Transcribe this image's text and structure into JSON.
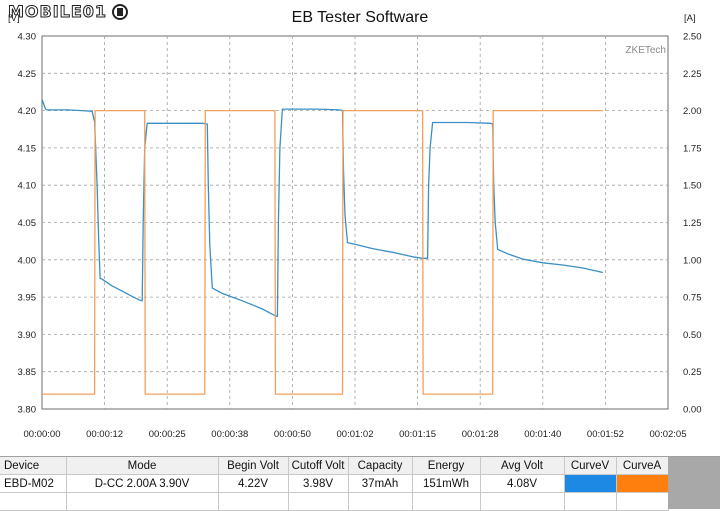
{
  "logo": {
    "text": "MOBILE01"
  },
  "chart_data": {
    "type": "line",
    "title": "EB Tester Software",
    "watermark": "ZKETech",
    "left_axis": {
      "unit": "[V]",
      "ylim": [
        3.8,
        4.3
      ],
      "ticks": [
        "4.30",
        "4.25",
        "4.20",
        "4.15",
        "4.10",
        "4.05",
        "4.00",
        "3.95",
        "3.90",
        "3.85",
        "3.80"
      ]
    },
    "right_axis": {
      "unit": "[A]",
      "ylim": [
        0.0,
        2.5
      ],
      "ticks": [
        "2.50",
        "2.25",
        "2.00",
        "1.75",
        "1.50",
        "1.25",
        "1.00",
        "0.75",
        "0.50",
        "0.25",
        "0.00"
      ]
    },
    "x_axis": {
      "xlim_seconds": [
        0,
        125
      ],
      "ticks": [
        "00:00:00",
        "00:00:12",
        "00:00:25",
        "00:00:38",
        "00:00:50",
        "00:01:02",
        "00:01:15",
        "00:01:28",
        "00:01:40",
        "00:01:52",
        "00:02:05"
      ]
    },
    "grid": true,
    "series": [
      {
        "name": "CurveV",
        "axis": "left",
        "color": "#3c8fc4",
        "x": [
          0,
          0.7,
          1,
          2,
          5,
          8,
          10,
          10.5,
          11,
          11.3,
          11.6,
          12,
          14,
          16,
          18,
          19.5,
          20,
          20.2,
          20.5,
          21,
          23,
          26,
          30,
          32,
          33,
          33.2,
          33.5,
          34,
          36,
          40,
          44,
          46,
          47,
          47.2,
          47.5,
          48,
          50,
          55,
          59.5,
          60,
          60.2,
          60.5,
          61,
          63,
          66,
          70,
          74,
          76,
          77,
          77.2,
          77.5,
          78,
          80,
          85,
          89.5,
          90,
          90.2,
          90.5,
          91,
          93,
          96,
          100,
          104,
          108,
          110,
          112
        ],
        "y": [
          4.215,
          4.202,
          4.201,
          4.201,
          4.201,
          4.2,
          4.199,
          4.185,
          4.1,
          4.03,
          3.975,
          3.974,
          3.965,
          3.958,
          3.951,
          3.946,
          3.945,
          4.05,
          4.15,
          4.183,
          4.183,
          4.183,
          4.183,
          4.183,
          4.182,
          4.1,
          4.02,
          3.962,
          3.955,
          3.945,
          3.934,
          3.927,
          3.924,
          4.05,
          4.15,
          4.202,
          4.202,
          4.202,
          4.201,
          4.2,
          4.12,
          4.06,
          4.023,
          4.02,
          4.015,
          4.01,
          4.004,
          4.002,
          4.002,
          4.1,
          4.15,
          4.184,
          4.184,
          4.184,
          4.183,
          4.182,
          4.1,
          4.05,
          4.014,
          4.008,
          4.001,
          3.996,
          3.993,
          3.989,
          3.986,
          3.983
        ]
      },
      {
        "name": "CurveA",
        "axis": "right",
        "color": "#f2a05c",
        "x": [
          0,
          10.5,
          10.6,
          20.5,
          20.6,
          32.5,
          32.6,
          46.5,
          46.6,
          60,
          60.1,
          76,
          76.1,
          90,
          90.1,
          112
        ],
        "y": [
          0.1,
          0.1,
          2.0,
          2.0,
          0.1,
          0.1,
          2.0,
          2.0,
          0.1,
          0.1,
          2.0,
          2.0,
          0.1,
          0.1,
          2.0,
          2.0
        ]
      }
    ]
  },
  "table": {
    "headers": [
      "Device",
      "Mode",
      "Begin Volt",
      "Cutoff Volt",
      "Capacity",
      "Energy",
      "Avg Volt",
      "CurveV",
      "CurveA"
    ],
    "row": [
      "EBD-M02",
      "D-CC  2.00A  3.90V",
      "4.22V",
      "3.98V",
      "37mAh",
      "151mWh",
      "4.08V"
    ],
    "curve_colors": {
      "CurveV": "#1e88e5",
      "CurveA": "#ff7f0e"
    }
  }
}
